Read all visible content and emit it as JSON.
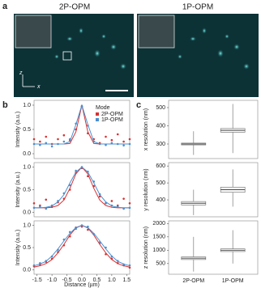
{
  "labels": {
    "a": "a",
    "b": "b",
    "c": "c"
  },
  "images": {
    "left_title": "2P-OPM",
    "right_title": "1P-OPM",
    "axis_z": "z",
    "axis_x": "x"
  },
  "chart_data": [
    {
      "type": "line",
      "ylabel": "Intensity (a.u.)",
      "legend_title": "Mode",
      "xlim": [
        -1.6,
        1.6
      ],
      "ylim": [
        -0.1,
        1.1
      ],
      "yticks": [
        {
          "value": 0,
          "label": "0.0"
        },
        0.5,
        {
          "value": 1,
          "label": "1.0"
        }
      ],
      "x": [
        -1.6,
        -1.4,
        -1.2,
        -1.0,
        -0.8,
        -0.6,
        -0.4,
        -0.2,
        0,
        0.2,
        0.4,
        0.6,
        0.8,
        1.0,
        1.2,
        1.4,
        1.6
      ],
      "series": [
        {
          "name": "2P-OPM",
          "color": "#d93030",
          "values": [
            0.3,
            0.25,
            0.35,
            0.2,
            0.3,
            0.38,
            0.28,
            0.5,
            0.98,
            0.42,
            0.3,
            0.22,
            0.35,
            0.28,
            0.4,
            0.25,
            0.3
          ],
          "fit": [
            0.2,
            0.2,
            0.2,
            0.2,
            0.2,
            0.2,
            0.21,
            0.45,
            1,
            0.45,
            0.21,
            0.2,
            0.2,
            0.2,
            0.2,
            0.2,
            0.2
          ]
        },
        {
          "name": "1P-OPM",
          "color": "#4a8fd0",
          "values": [
            0.2,
            0.18,
            0.22,
            0.15,
            0.2,
            0.25,
            0.3,
            0.62,
            0.97,
            0.58,
            0.25,
            0.2,
            0.18,
            0.22,
            0.2,
            0.17,
            0.2
          ],
          "fit": [
            0.2,
            0.2,
            0.2,
            0.2,
            0.2,
            0.2,
            0.25,
            0.6,
            1,
            0.6,
            0.25,
            0.2,
            0.2,
            0.2,
            0.2,
            0.2,
            0.2
          ]
        }
      ]
    },
    {
      "type": "line",
      "ylabel": "Intensity (a.u.)",
      "xlim": [
        -1.6,
        1.6
      ],
      "ylim": [
        -0.1,
        1.1
      ],
      "yticks": [
        {
          "value": 0,
          "label": "0.0"
        },
        0.5,
        {
          "value": 1,
          "label": "1.0"
        }
      ],
      "x": [
        -1.6,
        -1.4,
        -1.2,
        -1.0,
        -0.8,
        -0.6,
        -0.4,
        -0.2,
        0,
        0.2,
        0.4,
        0.6,
        0.8,
        1.0,
        1.2,
        1.4,
        1.6
      ],
      "series": [
        {
          "color": "#d93030",
          "values": [
            0.2,
            0.15,
            0.28,
            0.12,
            0.22,
            0.3,
            0.5,
            0.88,
            0.98,
            0.8,
            0.58,
            0.35,
            0.2,
            0.25,
            0.15,
            0.3,
            0.2
          ],
          "fit": [
            0.1,
            0.1,
            0.1,
            0.11,
            0.15,
            0.27,
            0.53,
            0.85,
            1,
            0.85,
            0.53,
            0.27,
            0.15,
            0.11,
            0.1,
            0.1,
            0.1
          ]
        },
        {
          "color": "#4a8fd0",
          "values": [
            0.1,
            0.12,
            0.08,
            0.15,
            0.25,
            0.42,
            0.6,
            0.92,
            1,
            0.9,
            0.68,
            0.4,
            0.2,
            0.15,
            0.12,
            0.08,
            0.1
          ],
          "fit": [
            0.1,
            0.1,
            0.11,
            0.14,
            0.23,
            0.39,
            0.65,
            0.89,
            1,
            0.89,
            0.65,
            0.39,
            0.23,
            0.14,
            0.11,
            0.1,
            0.1
          ]
        }
      ]
    },
    {
      "type": "line",
      "ylabel": "Intensity (a.u.)",
      "xlabel": "Distance (µm)",
      "xlim": [
        -1.6,
        1.6
      ],
      "ylim": [
        -0.1,
        1.1
      ],
      "xticks": [
        -1.5,
        {
          "value": -1,
          "label": "-1.0"
        },
        -0.5,
        {
          "value": 0,
          "label": "0.0"
        },
        0.5,
        {
          "value": 1,
          "label": "1.0"
        },
        1.5
      ],
      "yticks": [
        {
          "value": 0,
          "label": "0.0"
        },
        0.5,
        {
          "value": 1,
          "label": "1.0"
        }
      ],
      "x": [
        -1.6,
        -1.4,
        -1.2,
        -1.0,
        -0.8,
        -0.6,
        -0.4,
        -0.2,
        0,
        0.2,
        0.4,
        0.6,
        0.8,
        1.0,
        1.2,
        1.4,
        1.6
      ],
      "series": [
        {
          "color": "#d93030",
          "values": [
            0.08,
            0.12,
            0.18,
            0.25,
            0.4,
            0.55,
            0.75,
            0.95,
            0.97,
            0.9,
            0.8,
            0.6,
            0.35,
            0.25,
            0.15,
            0.1,
            0.05
          ],
          "fit": [
            0.06,
            0.09,
            0.14,
            0.23,
            0.38,
            0.57,
            0.78,
            0.94,
            1,
            0.94,
            0.78,
            0.57,
            0.38,
            0.23,
            0.14,
            0.09,
            0.06
          ]
        },
        {
          "color": "#4a8fd0",
          "values": [
            0.1,
            0.15,
            0.2,
            0.3,
            0.45,
            0.68,
            0.85,
            0.92,
            1,
            0.97,
            0.8,
            0.62,
            0.5,
            0.3,
            0.2,
            0.12,
            0.1
          ],
          "fit": [
            0.09,
            0.13,
            0.19,
            0.31,
            0.47,
            0.65,
            0.82,
            0.95,
            1,
            0.95,
            0.82,
            0.65,
            0.47,
            0.31,
            0.19,
            0.13,
            0.09
          ]
        }
      ]
    },
    {
      "type": "box",
      "ylabel": "x resolution (nm)",
      "color": "#7a7a7a",
      "ylim": [
        220,
        540
      ],
      "yticks": [
        300,
        400,
        500
      ],
      "boxes": [
        {
          "min": 240,
          "q1": 295,
          "median": 300,
          "q3": 305,
          "max": 370
        },
        {
          "min": 250,
          "q1": 365,
          "median": 375,
          "q3": 385,
          "max": 520
        }
      ]
    },
    {
      "type": "box",
      "ylabel": "y resolution (nm)",
      "color": "#7a7a7a",
      "ylim": [
        300,
        620
      ],
      "yticks": [
        400,
        500,
        600
      ],
      "boxes": [
        {
          "min": 310,
          "q1": 370,
          "median": 380,
          "q3": 390,
          "max": 460
        },
        {
          "min": 360,
          "q1": 445,
          "median": 460,
          "q3": 475,
          "max": 580
        }
      ]
    },
    {
      "type": "box",
      "ylabel": "z resolution (nm)",
      "color": "#7a7a7a",
      "ylim": [
        100,
        2100
      ],
      "yticks": [
        500,
        1000,
        1500,
        2000
      ],
      "categories": [
        "2P-OPM",
        "1P-OPM"
      ],
      "boxes": [
        {
          "min": 200,
          "q1": 650,
          "median": 700,
          "q3": 750,
          "max": 1500
        },
        {
          "min": 500,
          "q1": 950,
          "median": 1000,
          "q3": 1050,
          "max": 1750
        }
      ]
    }
  ]
}
